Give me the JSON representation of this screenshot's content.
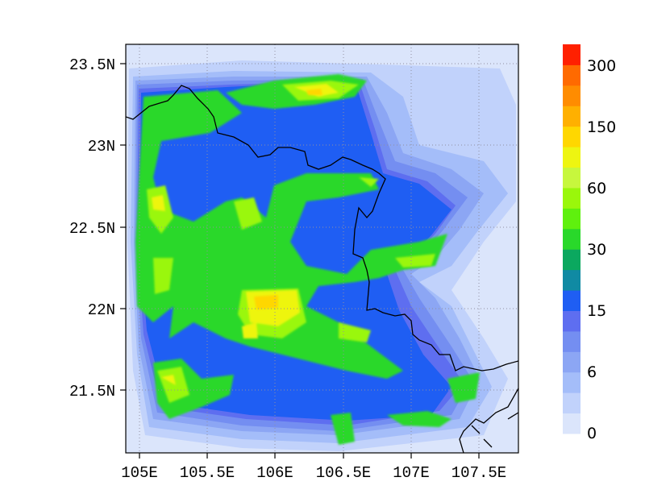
{
  "colors": {
    "levels": [
      "#dbe5fb",
      "#c1d2fb",
      "#a4bdf9",
      "#8ca6f4",
      "#748ef1",
      "#5e6ef0",
      "#1f5ef3",
      "#108aa3",
      "#0ba85f",
      "#29d82a",
      "#5ff00e",
      "#9af70b",
      "#c7f73d",
      "#eef511",
      "#ffd700",
      "#ffb000",
      "#ff8c00",
      "#ff6a00",
      "#ff2000"
    ],
    "background": "#dbe5fb",
    "coast": "#000000",
    "grid": "#9090a0"
  },
  "colorbar": {
    "labels": [
      "0",
      "6",
      "15",
      "30",
      "60",
      "150",
      "300"
    ]
  },
  "axes": {
    "x_ticks": [
      "105E",
      "105.5E",
      "106E",
      "106.5E",
      "107E",
      "107.5E"
    ],
    "y_ticks": [
      "23.5N",
      "23N",
      "22.5N",
      "22N",
      "21.5N"
    ]
  },
  "chart_data": {
    "type": "heatmap",
    "lon_range": [
      104.9,
      107.8
    ],
    "lat_range": [
      21.1,
      23.62
    ],
    "x_tick_values": [
      105,
      105.5,
      106,
      106.5,
      107,
      107.5
    ],
    "y_tick_values": [
      23.5,
      23,
      22.5,
      22,
      21.5
    ],
    "grid": true
  }
}
